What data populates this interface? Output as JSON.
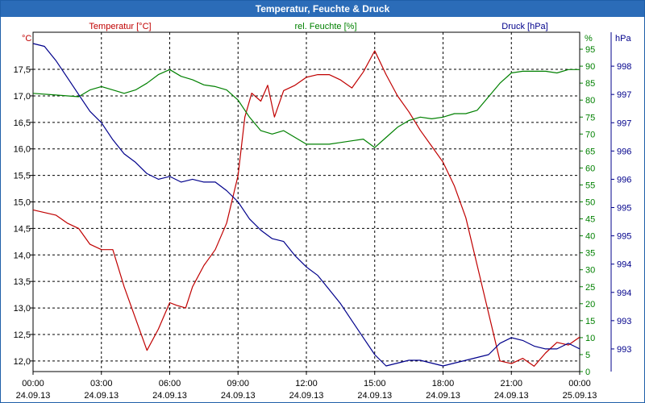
{
  "title": "Temperatur, Feuchte & Druck",
  "colors": {
    "temperature": "#c00000",
    "humidity": "#008000",
    "pressure": "#00008b",
    "titlebar": "#2b6cb8"
  },
  "chart_data": {
    "type": "line",
    "title": "Temperatur, Feuchte & Druck",
    "axes": {
      "left": {
        "label": "Temperatur [°C]",
        "unit": "°C",
        "ylim": [
          11.8,
          18.2
        ],
        "ticks": [
          "12,0",
          "12,5",
          "13,0",
          "13,5",
          "14,0",
          "14,5",
          "15,0",
          "15,5",
          "16,0",
          "16,5",
          "17,0",
          "17,5"
        ]
      },
      "middle": {
        "label": "rel. Feuchte [%]",
        "unit": "%",
        "ylim": [
          0,
          100
        ],
        "ticks": [
          "0",
          "5",
          "10",
          "15",
          "20",
          "25",
          "30",
          "35",
          "40",
          "45",
          "50",
          "55",
          "60",
          "65",
          "70",
          "75",
          "80",
          "85",
          "90",
          "95"
        ]
      },
      "right": {
        "label": "Druck [hPa]",
        "unit": "hPa",
        "ylim": [
          992.6,
          998.6
        ],
        "ticks": [
          "993",
          "993",
          "994",
          "994",
          "995",
          "995",
          "996",
          "996",
          "997",
          "997",
          "998"
        ]
      }
    },
    "x_ticks": [
      {
        "time": "00:00",
        "date": "24.09.13"
      },
      {
        "time": "03:00",
        "date": "24.09.13"
      },
      {
        "time": "06:00",
        "date": "24.09.13"
      },
      {
        "time": "09:00",
        "date": "24.09.13"
      },
      {
        "time": "12:00",
        "date": "24.09.13"
      },
      {
        "time": "15:00",
        "date": "24.09.13"
      },
      {
        "time": "18:00",
        "date": "24.09.13"
      },
      {
        "time": "21:00",
        "date": "24.09.13"
      },
      {
        "time": "00:00",
        "date": "25.09.13"
      }
    ],
    "grid": true,
    "series": [
      {
        "name": "Temperatur [°C]",
        "axis": "left",
        "x": [
          0,
          0.5,
          1,
          1.5,
          2,
          2.5,
          3,
          3.5,
          4,
          4.5,
          5,
          5.5,
          6,
          6.3,
          6.7,
          7,
          7.5,
          8,
          8.5,
          9,
          9.3,
          9.6,
          10,
          10.3,
          10.6,
          11,
          11.5,
          12,
          12.5,
          13,
          13.5,
          14,
          14.5,
          15,
          15.5,
          16,
          16.5,
          17,
          17.5,
          18,
          18.5,
          19,
          19.5,
          20,
          20.5,
          21,
          21.5,
          22,
          22.5,
          23,
          23.5,
          24
        ],
        "values": [
          14.85,
          14.8,
          14.75,
          14.6,
          14.5,
          14.2,
          14.1,
          14.1,
          13.4,
          12.8,
          12.2,
          12.6,
          13.1,
          13.05,
          13.0,
          13.4,
          13.8,
          14.1,
          14.6,
          15.5,
          16.6,
          17.05,
          16.9,
          17.2,
          16.6,
          17.1,
          17.2,
          17.35,
          17.4,
          17.4,
          17.3,
          17.15,
          17.45,
          17.85,
          17.4,
          17.0,
          16.7,
          16.35,
          16.05,
          15.75,
          15.3,
          14.7,
          13.8,
          12.9,
          12.0,
          11.95,
          12.05,
          11.9,
          12.15,
          12.35,
          12.3,
          12.45
        ]
      },
      {
        "name": "rel. Feuchte [%]",
        "axis": "middle",
        "x": [
          0,
          1,
          2,
          2.5,
          3,
          3.5,
          4,
          4.5,
          5,
          5.5,
          6,
          6.5,
          7,
          7.5,
          8,
          8.5,
          9,
          9.5,
          10,
          10.5,
          11,
          11.5,
          12,
          12.5,
          13,
          13.5,
          14,
          14.5,
          15,
          15.5,
          16,
          16.5,
          17,
          17.5,
          18,
          18.5,
          19,
          19.5,
          20,
          20.5,
          21,
          21.5,
          22,
          22.5,
          23,
          23.5,
          24
        ],
        "values": [
          82,
          81.5,
          81,
          83,
          84,
          83,
          82,
          83,
          85,
          87.5,
          89,
          87,
          86,
          84.5,
          84,
          83,
          80,
          75,
          71,
          70,
          71,
          69,
          67,
          67,
          67,
          67.5,
          68,
          68.5,
          66,
          69,
          72,
          74,
          75,
          74.5,
          75,
          76,
          76,
          77,
          81,
          85,
          88,
          88.5,
          88.5,
          88.5,
          88,
          89,
          89
        ]
      },
      {
        "name": "Druck [hPa]",
        "axis": "right",
        "x": [
          0,
          0.5,
          1,
          1.5,
          2,
          2.5,
          3,
          3.5,
          4,
          4.5,
          5,
          5.5,
          6,
          6.5,
          7,
          7.5,
          8,
          8.5,
          9,
          9.5,
          10,
          10.5,
          11,
          11.5,
          12,
          12.5,
          13,
          13.5,
          14,
          14.5,
          15,
          15.5,
          16,
          16.5,
          17,
          17.5,
          18,
          18.5,
          19,
          19.5,
          20,
          20.5,
          21,
          21.5,
          22,
          22.5,
          23,
          23.5,
          24
        ],
        "values": [
          998.4,
          998.35,
          998.1,
          997.8,
          997.5,
          997.2,
          997.0,
          996.7,
          996.45,
          996.3,
          996.1,
          996.0,
          996.05,
          995.95,
          996.0,
          995.95,
          995.95,
          995.8,
          995.6,
          995.3,
          995.1,
          994.95,
          994.9,
          994.65,
          994.45,
          994.3,
          994.05,
          993.8,
          993.5,
          993.2,
          992.9,
          992.7,
          992.75,
          992.8,
          992.8,
          992.75,
          992.7,
          992.75,
          992.8,
          992.85,
          992.9,
          993.1,
          993.2,
          993.15,
          993.05,
          993.0,
          993.0,
          993.1,
          993.0
        ]
      }
    ]
  }
}
